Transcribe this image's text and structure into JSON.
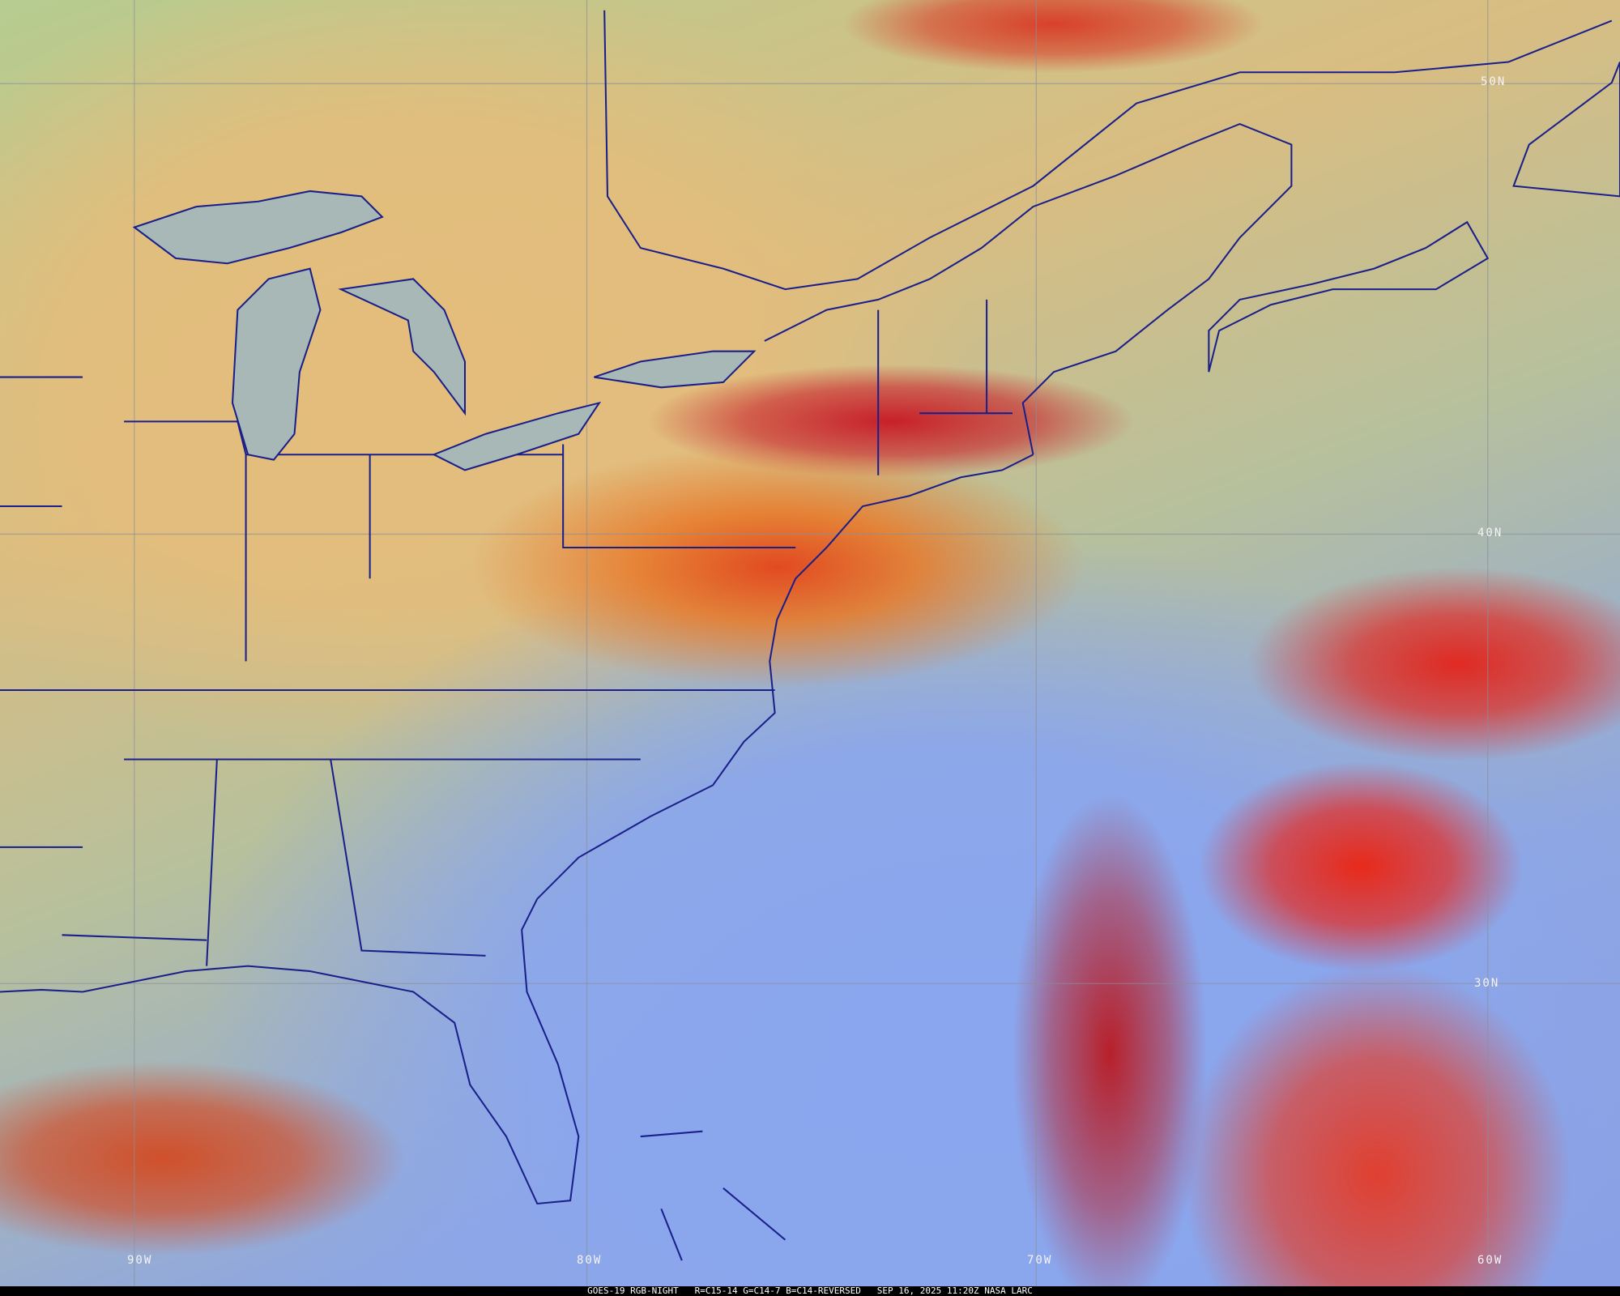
{
  "caption": {
    "satellite": "GOES-19 RGB-NIGHT",
    "channels": "R=C15-14 G=C14-7 B=C14-REVERSED",
    "datetime": "SEP 16, 2025 11:20Z",
    "credit": "NASA LARC"
  },
  "grid_labels": {
    "lat": [
      "50N",
      "40N",
      "30N"
    ],
    "lon": [
      "90W",
      "80W",
      "70W",
      "60W"
    ]
  },
  "colors": {
    "boundaries": "#1a1f8a",
    "land": "#d9bd82",
    "ocean": "#8aa0e6",
    "cloud_high": "#e02a22"
  }
}
